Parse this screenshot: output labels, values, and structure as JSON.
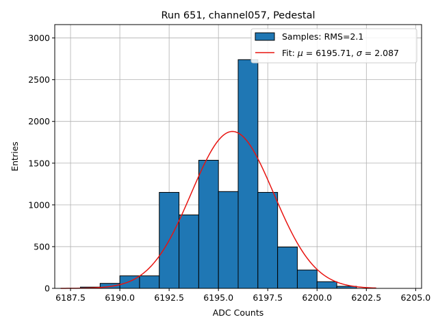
{
  "chart_data": {
    "type": "bar",
    "title": "Run 651, channel057, Pedestal",
    "xlabel": "ADC Counts",
    "ylabel": "Entries",
    "xlim": [
      6186.7,
      6205.3
    ],
    "ylim": [
      0,
      3160
    ],
    "xticks": [
      6187.5,
      6190.0,
      6192.5,
      6195.0,
      6197.5,
      6200.0,
      6202.5,
      6205.0
    ],
    "xtick_labels": [
      "6187.5",
      "6190.0",
      "6192.5",
      "6195.0",
      "6197.5",
      "6200.0",
      "6202.5",
      "6205.0"
    ],
    "yticks": [
      0,
      500,
      1000,
      1500,
      2000,
      2500,
      3000
    ],
    "ytick_labels": [
      "0",
      "500",
      "1000",
      "1500",
      "2000",
      "2500",
      "3000"
    ],
    "grid": true,
    "legend_position": "top-right",
    "bins": {
      "edges": [
        6188,
        6189,
        6190,
        6191,
        6192,
        6193,
        6194,
        6195,
        6196,
        6197,
        6198,
        6199,
        6200,
        6201,
        6202
      ],
      "counts": [
        15,
        60,
        150,
        150,
        1150,
        880,
        1535,
        1160,
        2740,
        1150,
        495,
        220,
        80,
        25
      ]
    },
    "series": [
      {
        "name": "Samples: RMS=2.1",
        "kind": "histogram",
        "color": "#1f77b4",
        "edgecolor": "#000000"
      },
      {
        "name": "Fit: μ = 6195.71, σ = 2.087",
        "kind": "line",
        "color": "#e8130f",
        "mu": 6195.71,
        "sigma": 2.087,
        "amplitude": 1880,
        "x_range": [
          6187.0,
          6203.0
        ]
      }
    ],
    "legend": {
      "hist_label": "Samples: RMS=2.1",
      "fit_prefix": "Fit: ",
      "mu_symbol": "μ",
      "fit_mid": " = 6195.71, ",
      "sigma_symbol": "σ",
      "fit_suffix": " = 2.087"
    }
  }
}
